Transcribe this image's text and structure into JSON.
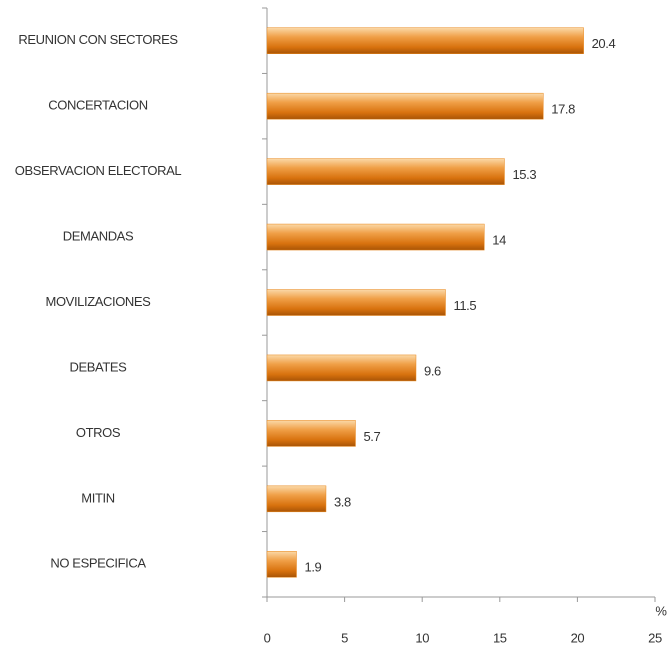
{
  "chart_data": {
    "type": "bar",
    "orientation": "horizontal",
    "x_label": "%",
    "categories": [
      "REUNION CON SECTORES",
      "CONCERTACION",
      "OBSERVACION ELECTORAL",
      "DEMANDAS",
      "MOVILIZACIONES",
      "DEBATES",
      "OTROS",
      "MITIN",
      "NO ESPECIFICA"
    ],
    "values": [
      20.4,
      17.8,
      15.3,
      14,
      11.5,
      9.6,
      5.7,
      3.8,
      1.9
    ],
    "color": "#e8861a",
    "xlim": [
      0,
      25
    ],
    "xticks": [
      0,
      5,
      10,
      15,
      20,
      25
    ],
    "grid": false
  }
}
